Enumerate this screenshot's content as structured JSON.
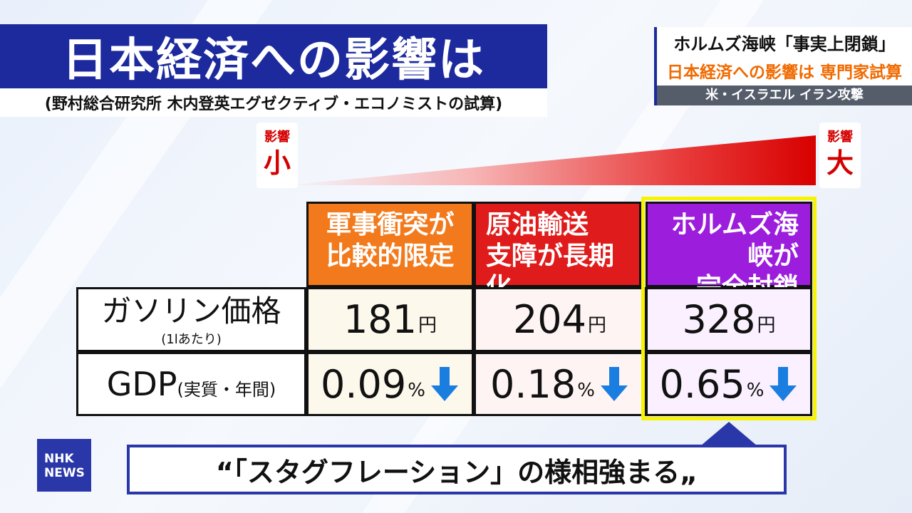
{
  "title": "日本経済への影響は",
  "subtitle": "(野村総合研究所 木内登英エグゼクティブ・エコノミストの試算)",
  "headline": {
    "line1": "ホルムズ海峡「事実上閉鎖」",
    "line2": "日本経済への影響は 専門家試算",
    "line3": "米・イスラエル イラン攻撃"
  },
  "impact_scale": {
    "small_label_top": "影響",
    "small_label_big": "小",
    "large_label_top": "影響",
    "large_label_big": "大"
  },
  "table": {
    "scenarios": [
      {
        "line1": "軍事衝突が",
        "line2": "比較的限定",
        "color": "#f27a1c"
      },
      {
        "line1": "原油輸送",
        "line2": "支障が長期化",
        "color": "#e01b1b"
      },
      {
        "line1": "ホルムズ海峡が",
        "line2": "完全封鎖",
        "color": "#9c1ddc"
      }
    ],
    "row_gas": {
      "label": "ガソリン価格",
      "sublabel": "(1lあたり)",
      "unit": "円",
      "values": [
        "181",
        "204",
        "328"
      ]
    },
    "row_gdp": {
      "label": "GDP",
      "sublabel": "(実質・年間)",
      "unit": "%",
      "values": [
        "0.09",
        "0.18",
        "0.65"
      ]
    },
    "highlight_color": "#f8f400",
    "arrow_color": "#1a7ee0"
  },
  "caption": "“「スタグフレーション」の様相強まる„",
  "logo": {
    "line1": "NHK",
    "line2": "NEWS"
  }
}
